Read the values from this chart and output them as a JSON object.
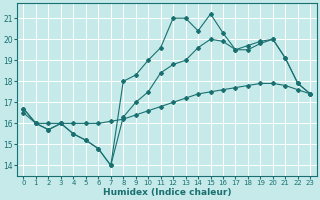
{
  "xlabel": "Humidex (Indice chaleur)",
  "background_color": "#c6eaea",
  "grid_color": "#ffffff",
  "line_color": "#1a7070",
  "xlim": [
    -0.5,
    23.5
  ],
  "ylim": [
    13.5,
    21.7
  ],
  "yticks": [
    14,
    15,
    16,
    17,
    18,
    19,
    20,
    21
  ],
  "xticks": [
    0,
    1,
    2,
    3,
    4,
    5,
    6,
    7,
    8,
    9,
    10,
    11,
    12,
    13,
    14,
    15,
    16,
    17,
    18,
    19,
    20,
    21,
    22,
    23
  ],
  "series": [
    {
      "x": [
        0,
        1,
        2,
        3,
        4,
        5,
        6,
        7,
        8,
        9,
        10,
        11,
        12,
        13,
        14,
        15,
        16,
        17,
        18,
        19,
        20,
        21,
        22,
        23
      ],
      "y": [
        16.7,
        16.0,
        15.7,
        16.0,
        15.5,
        15.2,
        14.8,
        14.0,
        16.3,
        17.0,
        17.5,
        18.4,
        18.8,
        19.0,
        19.6,
        20.0,
        19.9,
        19.5,
        19.5,
        19.8,
        20.0,
        19.1,
        17.9,
        17.4
      ]
    },
    {
      "x": [
        0,
        1,
        2,
        3,
        4,
        5,
        6,
        7,
        8,
        9,
        10,
        11,
        12,
        13,
        14,
        15,
        16,
        17,
        18,
        19,
        20,
        21,
        22,
        23
      ],
      "y": [
        16.7,
        16.0,
        15.7,
        16.0,
        15.5,
        15.2,
        14.8,
        14.0,
        18.0,
        18.3,
        19.0,
        19.6,
        21.0,
        21.0,
        20.4,
        21.2,
        20.3,
        19.5,
        19.7,
        19.9,
        20.0,
        19.1,
        17.9,
        17.4
      ]
    },
    {
      "x": [
        0,
        1,
        2,
        3,
        4,
        5,
        6,
        7,
        8,
        9,
        10,
        11,
        12,
        13,
        14,
        15,
        16,
        17,
        18,
        19,
        20,
        21,
        22,
        23
      ],
      "y": [
        16.5,
        16.0,
        16.0,
        16.0,
        16.0,
        16.0,
        16.0,
        16.1,
        16.2,
        16.4,
        16.6,
        16.8,
        17.0,
        17.2,
        17.4,
        17.5,
        17.6,
        17.7,
        17.8,
        17.9,
        17.9,
        17.8,
        17.6,
        17.4
      ]
    }
  ]
}
